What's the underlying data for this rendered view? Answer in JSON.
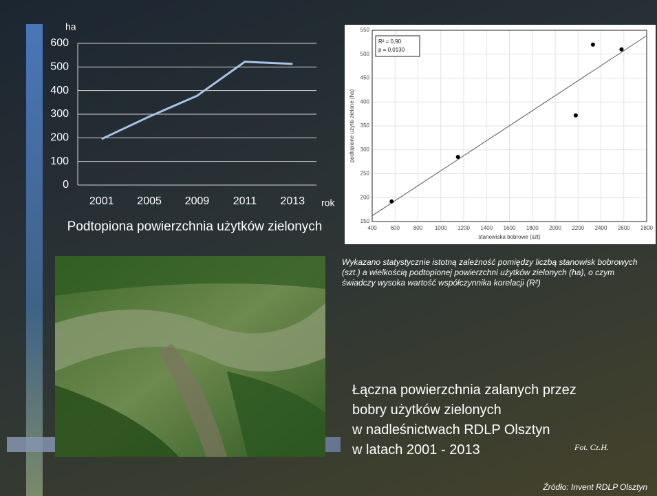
{
  "chart_data": [
    {
      "type": "line",
      "title": "Podtopiona powierzchnia użytków zielonych",
      "y_label": "ha",
      "x_label": "rok",
      "categories": [
        "2001",
        "2005",
        "2009",
        "2011",
        "2013"
      ],
      "values": [
        195,
        290,
        378,
        522,
        513
      ],
      "color": "#a9c4e6",
      "ylim": [
        0,
        600
      ],
      "yticks": [
        0,
        100,
        200,
        300,
        400,
        500,
        600
      ],
      "grid": true
    },
    {
      "type": "scatter",
      "x_label": "stanowiska bobrowe (szt)",
      "y_label": "podtopione użytki zielone (ha)",
      "annotations": [
        "R² = 0,90",
        "p = 0,0130"
      ],
      "x": [
        570,
        1150,
        2180,
        2330,
        2580
      ],
      "values": [
        192,
        285,
        372,
        520,
        510
      ],
      "color": "#000000",
      "xlim": [
        400,
        2800
      ],
      "xticks": [
        400,
        600,
        800,
        1000,
        1200,
        1400,
        1600,
        1800,
        2000,
        2200,
        2400,
        2600,
        2800
      ],
      "ylim": [
        150,
        550
      ],
      "yticks": [
        150,
        200,
        250,
        300,
        350,
        400,
        450,
        500,
        550
      ],
      "grid": true
    }
  ],
  "slide": {
    "caption": "Wykazano statystycznie istotną zależność pomiędzy liczbą stanowisk bobrowych (szt.) a wielkością podtopionej powierzchni użytków  zielonych (ha), o czym świadczy wysoka wartość współczynnika korelacji (R²)",
    "main_text": [
      "Łączna powierzchnia zalanych przez",
      "bobry użytków zielonych",
      "w nadleśnictwach RDLP Olsztyn",
      "w latach 2001 - 2013"
    ],
    "photo_credit": "Fot. Cz.H.",
    "source": "Źródło: Invent RDLP Olsztyn"
  }
}
